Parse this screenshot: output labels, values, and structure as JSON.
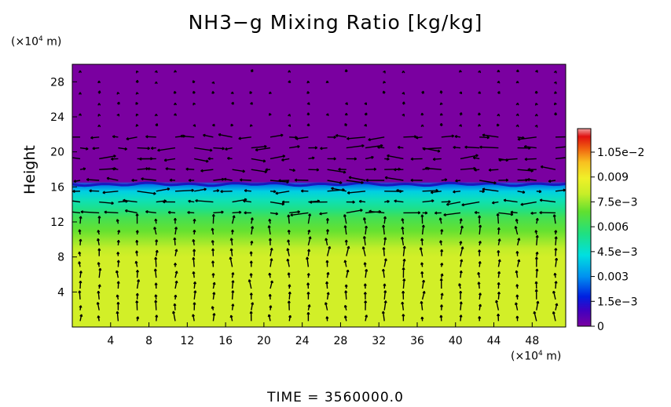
{
  "chart_data": {
    "type": "heatmap",
    "title": "NH3−g Mixing Ratio [kg/kg]",
    "ylabel": "Height",
    "xunit": "(×10⁴ m)",
    "yunit": "(×10⁴ m)",
    "xlim": [
      0,
      51.5
    ],
    "ylim": [
      0,
      30
    ],
    "xticks": [
      "4",
      "8",
      "12",
      "16",
      "20",
      "24",
      "28",
      "32",
      "36",
      "40",
      "44",
      "48"
    ],
    "yticks": [
      "4",
      "8",
      "12",
      "16",
      "20",
      "24",
      "28"
    ],
    "colorbar": {
      "labels": [
        "0",
        "1.5e−3",
        "0.003",
        "4.5e−3",
        "0.006",
        "7.5e−3",
        "0.009",
        "1.05e−2"
      ],
      "range": [
        0,
        0.0113
      ]
    },
    "field_profile": {
      "height": [
        0,
        8,
        9,
        11,
        12.5,
        13.5,
        14.5,
        15.5,
        16.3,
        16.6,
        30
      ],
      "value": [
        0.0078,
        0.0078,
        0.0075,
        0.0066,
        0.006,
        0.0052,
        0.0046,
        0.0038,
        0.0025,
        0,
        0
      ]
    },
    "vectors": "wind vectors overlaid"
  },
  "time_label": "TIME  =  3560000.0",
  "colors": {
    "top": "#7b00a8",
    "band_dark": "#1a1ac8",
    "band_blue": "#14b4f0",
    "band_cyan": "#00e0e0",
    "band_teal": "#20d8a0",
    "band_green": "#40e040",
    "band_lgreen": "#9aec30",
    "bottom": "#d8ee28"
  }
}
